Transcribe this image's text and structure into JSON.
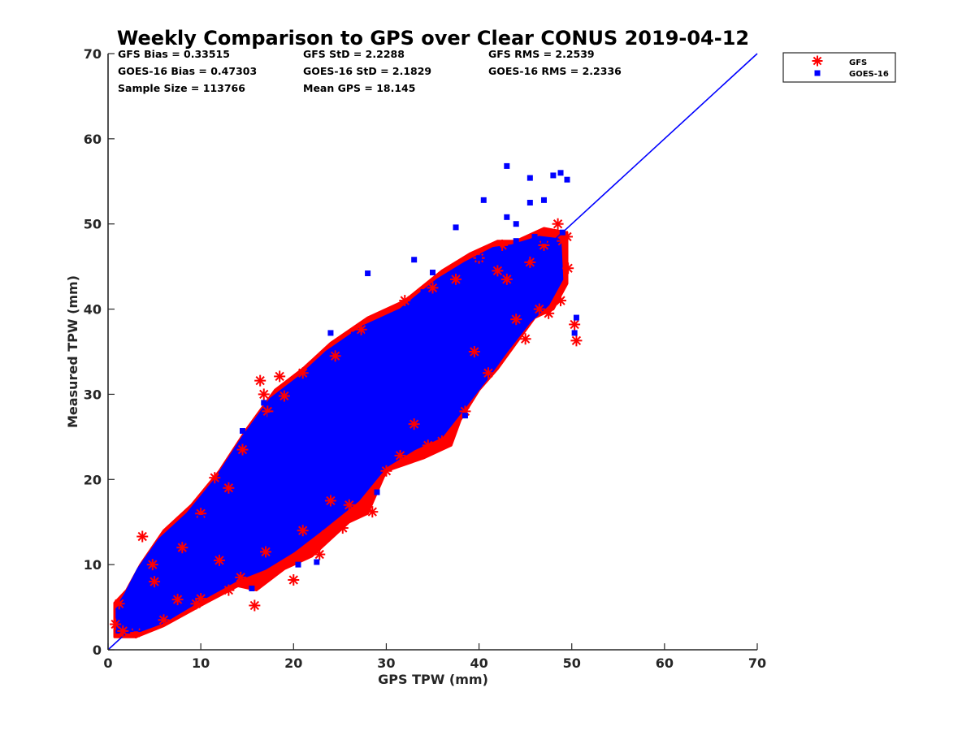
{
  "chart_data": {
    "type": "scatter",
    "title": "Weekly Comparison to GPS over Clear CONUS 2019-04-12",
    "xlabel": "GPS TPW (mm)",
    "ylabel": "Measured TPW (mm)",
    "xlim": [
      0,
      70
    ],
    "ylim": [
      0,
      70
    ],
    "x_ticks": [
      "0",
      "10",
      "20",
      "30",
      "40",
      "50",
      "60",
      "70"
    ],
    "y_ticks": [
      "0",
      "10",
      "20",
      "30",
      "40",
      "50",
      "60",
      "70"
    ],
    "grid": false,
    "legend_position": "outside top-right",
    "stats": [
      [
        "GFS Bias = 0.33515",
        "GFS StD = 2.2288",
        "GFS RMS = 2.2539"
      ],
      [
        "GOES-16 Bias = 0.47303",
        "GOES-16 StD = 2.1829",
        "GOES-16 RMS = 2.2336"
      ],
      [
        "Sample Size = 113766",
        "Mean GPS = 18.145",
        ""
      ]
    ],
    "reference_line": {
      "from": [
        0,
        0
      ],
      "to": [
        70,
        70
      ],
      "color": "#0000ff"
    },
    "series": [
      {
        "name": "GFS",
        "marker": "asterisk",
        "color": "#ff0000",
        "points": [
          [
            0.8,
            3.0
          ],
          [
            1.2,
            5.4
          ],
          [
            1.6,
            2.2
          ],
          [
            3.7,
            13.3
          ],
          [
            4.8,
            10.0
          ],
          [
            7.5,
            5.9
          ],
          [
            9.5,
            5.4
          ],
          [
            11.5,
            20.2
          ],
          [
            12.0,
            10.5
          ],
          [
            14.3,
            8.5
          ],
          [
            15.8,
            5.2
          ],
          [
            16.4,
            31.6
          ],
          [
            16.8,
            30.0
          ],
          [
            17.2,
            28.0
          ],
          [
            18.5,
            32.1
          ],
          [
            19.0,
            29.8
          ],
          [
            20.0,
            8.2
          ],
          [
            22.8,
            11.2
          ],
          [
            23.5,
            13.5
          ],
          [
            25.3,
            14.3
          ],
          [
            26.0,
            17.0
          ],
          [
            27.3,
            37.6
          ],
          [
            28.5,
            16.2
          ],
          [
            31.5,
            22.8
          ],
          [
            34.5,
            24.0
          ],
          [
            36.0,
            24.5
          ],
          [
            37.5,
            43.5
          ],
          [
            38.5,
            28.0
          ],
          [
            41.0,
            32.5
          ],
          [
            42.0,
            44.5
          ],
          [
            44.0,
            38.8
          ],
          [
            45.0,
            36.5
          ],
          [
            46.5,
            40.0
          ],
          [
            47.5,
            39.5
          ],
          [
            48.5,
            50.0
          ],
          [
            48.8,
            41.0
          ],
          [
            49.0,
            48.0
          ],
          [
            49.5,
            48.5
          ],
          [
            49.6,
            44.8
          ],
          [
            50.3,
            38.2
          ],
          [
            50.5,
            36.3
          ],
          [
            47.0,
            47.5
          ],
          [
            45.5,
            45.5
          ],
          [
            43.0,
            43.5
          ],
          [
            39.5,
            35.0
          ],
          [
            33.0,
            26.5
          ],
          [
            30.0,
            21.0
          ],
          [
            24.0,
            17.5
          ],
          [
            21.0,
            14.0
          ],
          [
            17.0,
            11.5
          ],
          [
            13.0,
            7.0
          ],
          [
            10.0,
            6.0
          ],
          [
            6.0,
            3.5
          ],
          [
            3.0,
            2.0
          ],
          [
            5.0,
            8.0
          ],
          [
            8.0,
            12.0
          ],
          [
            10.0,
            16.0
          ],
          [
            13.0,
            19.0
          ],
          [
            14.5,
            23.5
          ],
          [
            21.0,
            32.5
          ],
          [
            24.5,
            34.5
          ],
          [
            32.0,
            41.0
          ],
          [
            35.0,
            42.5
          ],
          [
            40.0,
            46.0
          ],
          [
            42.5,
            47.5
          ]
        ]
      },
      {
        "name": "GOES-16",
        "marker": "square",
        "color": "#0000ff",
        "points": [
          [
            43.0,
            56.8
          ],
          [
            48.0,
            55.7
          ],
          [
            48.8,
            56.0
          ],
          [
            49.5,
            55.2
          ],
          [
            45.5,
            55.4
          ],
          [
            45.5,
            52.5
          ],
          [
            47.0,
            52.8
          ],
          [
            40.5,
            52.8
          ],
          [
            37.5,
            49.6
          ],
          [
            43.0,
            50.8
          ],
          [
            44.0,
            50.0
          ],
          [
            28.0,
            44.2
          ],
          [
            33.0,
            45.8
          ],
          [
            50.5,
            39.0
          ],
          [
            50.3,
            37.2
          ],
          [
            35.0,
            44.3
          ],
          [
            26.5,
            37.0
          ],
          [
            24.0,
            37.2
          ],
          [
            14.5,
            25.7
          ],
          [
            16.8,
            29.0
          ],
          [
            17.5,
            27.5
          ],
          [
            38.5,
            27.5
          ],
          [
            15.5,
            7.2
          ],
          [
            20.5,
            10.0
          ],
          [
            22.5,
            10.3
          ],
          [
            29.0,
            18.5
          ],
          [
            41.0,
            35.0
          ],
          [
            47.5,
            42.0
          ],
          [
            48.5,
            47.0
          ],
          [
            46.0,
            44.0
          ],
          [
            44.5,
            42.5
          ],
          [
            42.0,
            38.0
          ],
          [
            38.0,
            34.5
          ],
          [
            36.0,
            31.5
          ],
          [
            32.0,
            28.0
          ],
          [
            30.0,
            25.0
          ],
          [
            28.0,
            22.5
          ],
          [
            25.0,
            20.5
          ],
          [
            23.0,
            18.0
          ],
          [
            21.0,
            16.5
          ],
          [
            19.0,
            14.0
          ],
          [
            17.0,
            12.5
          ],
          [
            15.0,
            10.8
          ],
          [
            13.0,
            9.5
          ],
          [
            11.0,
            8.0
          ],
          [
            9.0,
            6.5
          ],
          [
            7.0,
            5.0
          ],
          [
            5.0,
            4.0
          ],
          [
            3.0,
            2.5
          ],
          [
            2.0,
            5.0
          ],
          [
            4.0,
            8.0
          ],
          [
            6.0,
            11.0
          ],
          [
            8.0,
            13.5
          ],
          [
            10.0,
            15.5
          ],
          [
            12.0,
            18.5
          ],
          [
            14.0,
            21.0
          ],
          [
            16.0,
            23.5
          ],
          [
            18.0,
            26.0
          ],
          [
            20.0,
            28.0
          ],
          [
            22.0,
            30.0
          ],
          [
            24.0,
            33.0
          ],
          [
            26.0,
            35.5
          ],
          [
            28.0,
            37.0
          ],
          [
            30.0,
            38.0
          ],
          [
            32.0,
            40.0
          ],
          [
            34.0,
            42.0
          ],
          [
            36.0,
            43.0
          ],
          [
            38.0,
            44.5
          ],
          [
            40.0,
            46.0
          ],
          [
            42.0,
            47.0
          ],
          [
            44.0,
            48.0
          ],
          [
            46.0,
            48.5
          ],
          [
            3.0,
            4.0
          ],
          [
            5.0,
            6.5
          ],
          [
            7.0,
            9.0
          ],
          [
            9.0,
            11.0
          ],
          [
            11.0,
            13.0
          ],
          [
            13.0,
            15.0
          ],
          [
            15.0,
            17.0
          ],
          [
            17.0,
            19.0
          ],
          [
            19.0,
            21.0
          ],
          [
            21.0,
            23.0
          ],
          [
            23.0,
            25.0
          ],
          [
            25.0,
            27.0
          ],
          [
            27.0,
            29.0
          ],
          [
            29.0,
            31.0
          ],
          [
            31.0,
            33.0
          ],
          [
            33.0,
            35.0
          ],
          [
            35.0,
            37.0
          ],
          [
            37.0,
            39.0
          ],
          [
            39.0,
            41.0
          ],
          [
            41.0,
            43.0
          ],
          [
            43.0,
            45.0
          ],
          [
            45.0,
            46.0
          ],
          [
            47.0,
            48.0
          ],
          [
            49.0,
            49.0
          ]
        ]
      }
    ],
    "dense_band": {
      "note_series": [
        "GFS",
        "GOES-16"
      ],
      "outer_outline": [
        [
          0.7,
          1.5
        ],
        [
          3.0,
          1.5
        ],
        [
          6.0,
          2.8
        ],
        [
          10.0,
          5.2
        ],
        [
          14.0,
          7.5
        ],
        [
          16.0,
          7.0
        ],
        [
          19.0,
          9.5
        ],
        [
          22.0,
          11.0
        ],
        [
          26.0,
          15.0
        ],
        [
          28.0,
          16.0
        ],
        [
          30.0,
          21.0
        ],
        [
          34.0,
          22.5
        ],
        [
          37.0,
          24.0
        ],
        [
          38.0,
          27.0
        ],
        [
          40.0,
          30.5
        ],
        [
          42.0,
          33.0
        ],
        [
          44.0,
          36.0
        ],
        [
          46.0,
          39.0
        ],
        [
          48.0,
          40.0
        ],
        [
          49.5,
          43.0
        ],
        [
          49.5,
          49.0
        ],
        [
          47.0,
          49.5
        ],
        [
          44.0,
          48.0
        ],
        [
          42.0,
          48.0
        ],
        [
          39.0,
          46.5
        ],
        [
          36.0,
          44.5
        ],
        [
          32.0,
          41.0
        ],
        [
          28.0,
          39.0
        ],
        [
          24.0,
          36.0
        ],
        [
          21.0,
          33.0
        ],
        [
          18.0,
          30.5
        ],
        [
          15.0,
          26.0
        ],
        [
          12.0,
          21.0
        ],
        [
          9.0,
          17.0
        ],
        [
          6.0,
          14.0
        ],
        [
          3.5,
          10.0
        ],
        [
          2.0,
          7.0
        ],
        [
          0.7,
          5.5
        ]
      ],
      "inner_outline": [
        [
          0.9,
          2.0
        ],
        [
          3.0,
          2.0
        ],
        [
          6.0,
          3.2
        ],
        [
          10.0,
          5.8
        ],
        [
          14.0,
          8.2
        ],
        [
          17.0,
          9.5
        ],
        [
          20.0,
          11.5
        ],
        [
          23.0,
          14.0
        ],
        [
          27.0,
          17.5
        ],
        [
          30.0,
          21.5
        ],
        [
          33.0,
          23.5
        ],
        [
          36.0,
          25.0
        ],
        [
          38.5,
          28.5
        ],
        [
          41.0,
          32.0
        ],
        [
          43.0,
          35.0
        ],
        [
          45.5,
          38.5
        ],
        [
          47.5,
          40.5
        ],
        [
          49.0,
          43.5
        ],
        [
          48.8,
          48.2
        ],
        [
          46.5,
          48.5
        ],
        [
          43.5,
          47.5
        ],
        [
          41.5,
          47.2
        ],
        [
          38.5,
          45.5
        ],
        [
          35.5,
          43.5
        ],
        [
          31.5,
          40.0
        ],
        [
          27.5,
          38.0
        ],
        [
          23.5,
          35.0
        ],
        [
          20.5,
          32.0
        ],
        [
          17.5,
          29.5
        ],
        [
          14.5,
          25.0
        ],
        [
          11.5,
          20.0
        ],
        [
          8.5,
          16.0
        ],
        [
          5.5,
          13.0
        ],
        [
          3.2,
          9.5
        ],
        [
          1.8,
          6.5
        ],
        [
          0.9,
          5.0
        ]
      ]
    }
  }
}
